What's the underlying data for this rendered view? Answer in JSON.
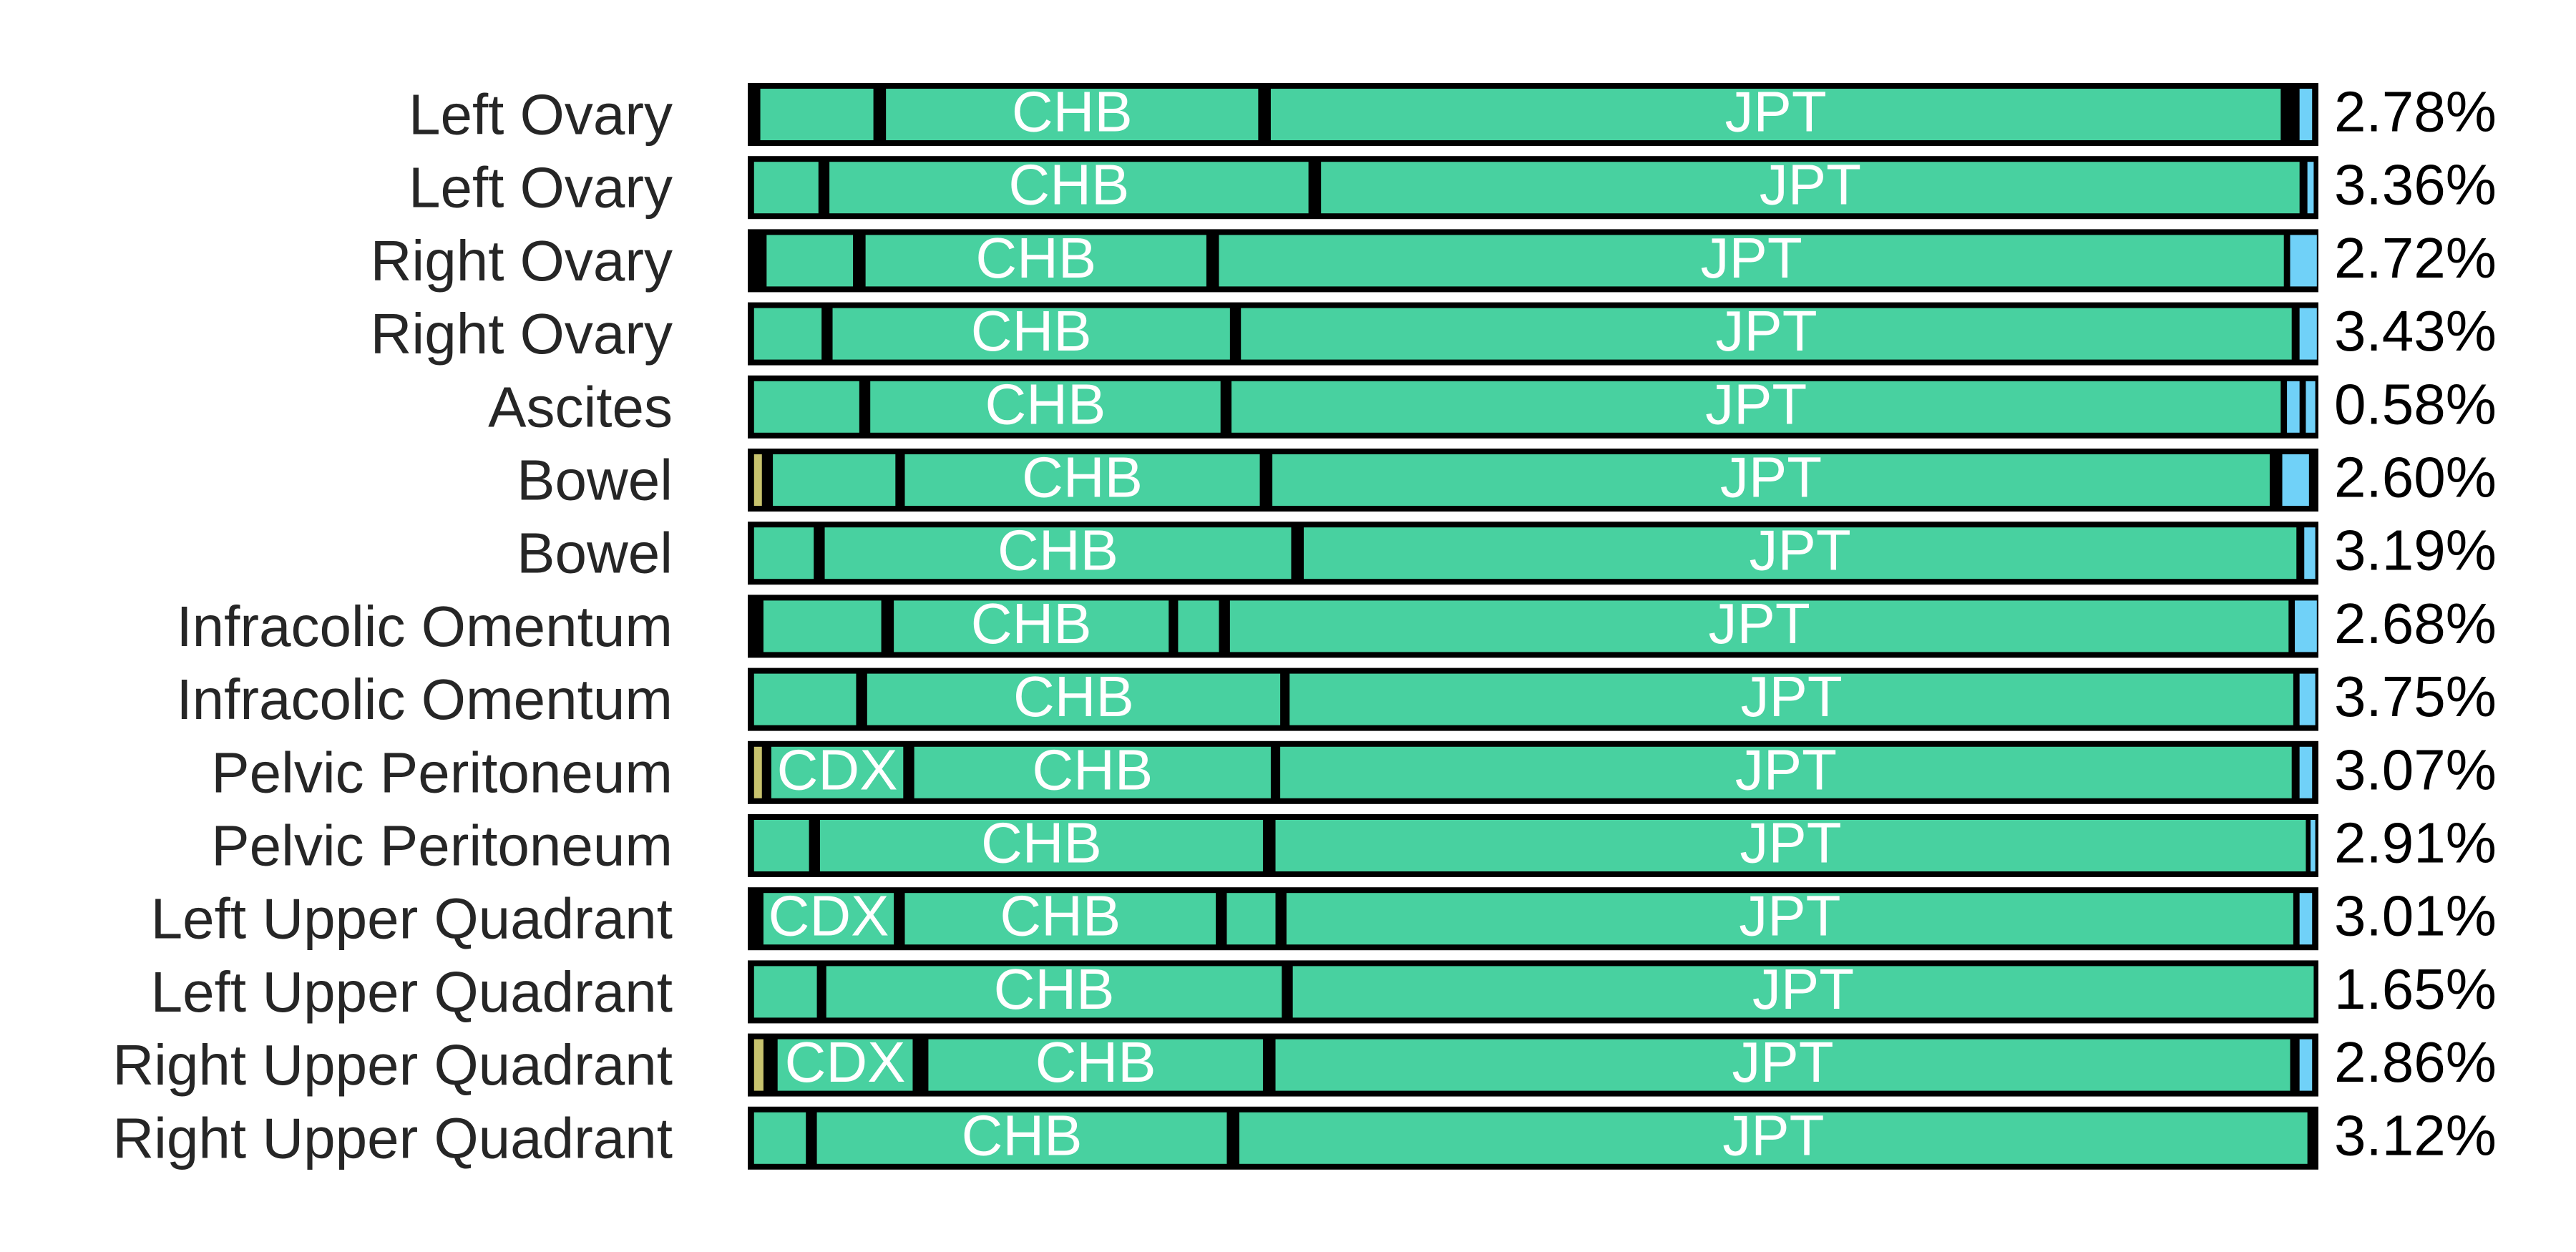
{
  "chart_data": {
    "type": "bar",
    "orientation": "horizontal",
    "stacked": true,
    "normalized": true,
    "xlim": [
      0,
      100
    ],
    "colors": {
      "gap": "#000000",
      "green": "#48d1a0",
      "yellow": "#c8c36e",
      "blue": "#70d1f8"
    },
    "rows": [
      {
        "label": "Left Ovary",
        "value": "2.78%",
        "segments": [
          {
            "start": 0.8,
            "end": 8.0,
            "color": "green",
            "label": ""
          },
          {
            "start": 8.8,
            "end": 32.5,
            "color": "green",
            "label": "CHB"
          },
          {
            "start": 33.3,
            "end": 97.6,
            "color": "green",
            "label": "JPT"
          },
          {
            "start": 98.8,
            "end": 99.6,
            "color": "blue",
            "label": ""
          }
        ]
      },
      {
        "label": "Left Ovary",
        "value": "3.36%",
        "segments": [
          {
            "start": 0.4,
            "end": 4.5,
            "color": "green",
            "label": ""
          },
          {
            "start": 5.2,
            "end": 35.7,
            "color": "green",
            "label": "CHB"
          },
          {
            "start": 36.5,
            "end": 98.8,
            "color": "green",
            "label": "JPT"
          },
          {
            "start": 99.3,
            "end": 99.7,
            "color": "blue",
            "label": ""
          }
        ]
      },
      {
        "label": "Right Ovary",
        "value": "2.72%",
        "segments": [
          {
            "start": 1.2,
            "end": 6.7,
            "color": "green",
            "label": ""
          },
          {
            "start": 7.5,
            "end": 29.2,
            "color": "green",
            "label": "CHB"
          },
          {
            "start": 30.0,
            "end": 97.8,
            "color": "green",
            "label": "JPT"
          },
          {
            "start": 98.2,
            "end": 99.9,
            "color": "blue",
            "label": ""
          }
        ]
      },
      {
        "label": "Right Ovary",
        "value": "3.43%",
        "segments": [
          {
            "start": 0.4,
            "end": 4.7,
            "color": "green",
            "label": ""
          },
          {
            "start": 5.4,
            "end": 30.7,
            "color": "green",
            "label": "CHB"
          },
          {
            "start": 31.4,
            "end": 98.3,
            "color": "green",
            "label": "JPT"
          },
          {
            "start": 98.8,
            "end": 99.9,
            "color": "blue",
            "label": ""
          }
        ]
      },
      {
        "label": "Ascites",
        "value": "0.58%",
        "segments": [
          {
            "start": 0.4,
            "end": 7.1,
            "color": "green",
            "label": ""
          },
          {
            "start": 7.8,
            "end": 30.1,
            "color": "green",
            "label": "CHB"
          },
          {
            "start": 30.8,
            "end": 97.6,
            "color": "green",
            "label": "JPT"
          },
          {
            "start": 98.0,
            "end": 98.8,
            "color": "blue",
            "label": ""
          },
          {
            "start": 99.2,
            "end": 99.8,
            "color": "blue",
            "label": ""
          }
        ]
      },
      {
        "label": "Bowel",
        "value": "2.60%",
        "segments": [
          {
            "start": 0.4,
            "end": 0.9,
            "color": "yellow",
            "label": ""
          },
          {
            "start": 1.6,
            "end": 9.4,
            "color": "green",
            "label": ""
          },
          {
            "start": 10.0,
            "end": 32.6,
            "color": "green",
            "label": "CHB"
          },
          {
            "start": 33.4,
            "end": 96.9,
            "color": "green",
            "label": "JPT"
          },
          {
            "start": 97.7,
            "end": 99.4,
            "color": "blue",
            "label": ""
          }
        ]
      },
      {
        "label": "Bowel",
        "value": "3.19%",
        "segments": [
          {
            "start": 0.4,
            "end": 4.2,
            "color": "green",
            "label": ""
          },
          {
            "start": 4.9,
            "end": 34.6,
            "color": "green",
            "label": "CHB"
          },
          {
            "start": 35.4,
            "end": 98.6,
            "color": "green",
            "label": "JPT"
          },
          {
            "start": 99.1,
            "end": 99.8,
            "color": "blue",
            "label": ""
          }
        ]
      },
      {
        "label": "Infracolic Omentum",
        "value": "2.68%",
        "segments": [
          {
            "start": 1.0,
            "end": 8.5,
            "color": "green",
            "label": ""
          },
          {
            "start": 9.3,
            "end": 26.8,
            "color": "green",
            "label": "CHB"
          },
          {
            "start": 27.4,
            "end": 30.0,
            "color": "green",
            "label": ""
          },
          {
            "start": 30.7,
            "end": 98.1,
            "color": "green",
            "label": "JPT"
          },
          {
            "start": 98.5,
            "end": 99.9,
            "color": "blue",
            "label": ""
          }
        ]
      },
      {
        "label": "Infracolic Omentum",
        "value": "3.75%",
        "segments": [
          {
            "start": 0.4,
            "end": 6.9,
            "color": "green",
            "label": ""
          },
          {
            "start": 7.6,
            "end": 33.9,
            "color": "green",
            "label": "CHB"
          },
          {
            "start": 34.5,
            "end": 98.4,
            "color": "green",
            "label": "JPT"
          },
          {
            "start": 98.8,
            "end": 99.8,
            "color": "blue",
            "label": ""
          }
        ]
      },
      {
        "label": "Pelvic Peritoneum",
        "value": "3.07%",
        "segments": [
          {
            "start": 0.4,
            "end": 0.9,
            "color": "yellow",
            "label": ""
          },
          {
            "start": 1.5,
            "end": 9.9,
            "color": "green",
            "label": "CDX"
          },
          {
            "start": 10.6,
            "end": 33.3,
            "color": "green",
            "label": "CHB"
          },
          {
            "start": 33.9,
            "end": 98.3,
            "color": "green",
            "label": "JPT"
          },
          {
            "start": 98.8,
            "end": 99.6,
            "color": "blue",
            "label": ""
          }
        ]
      },
      {
        "label": "Pelvic Peritoneum",
        "value": "2.91%",
        "segments": [
          {
            "start": 0.4,
            "end": 3.9,
            "color": "green",
            "label": ""
          },
          {
            "start": 4.6,
            "end": 32.8,
            "color": "green",
            "label": "CHB"
          },
          {
            "start": 33.6,
            "end": 99.2,
            "color": "green",
            "label": "JPT"
          },
          {
            "start": 99.5,
            "end": 99.8,
            "color": "blue",
            "label": ""
          }
        ]
      },
      {
        "label": "Left Upper Quadrant",
        "value": "3.01%",
        "segments": [
          {
            "start": 1.0,
            "end": 9.3,
            "color": "green",
            "label": "CDX"
          },
          {
            "start": 10.0,
            "end": 29.8,
            "color": "green",
            "label": "CHB"
          },
          {
            "start": 30.5,
            "end": 33.6,
            "color": "green",
            "label": ""
          },
          {
            "start": 34.3,
            "end": 98.4,
            "color": "green",
            "label": "JPT"
          },
          {
            "start": 98.8,
            "end": 99.6,
            "color": "blue",
            "label": ""
          }
        ]
      },
      {
        "label": "Left Upper Quadrant",
        "value": "1.65%",
        "segments": [
          {
            "start": 0.4,
            "end": 4.4,
            "color": "green",
            "label": ""
          },
          {
            "start": 5.0,
            "end": 34.0,
            "color": "green",
            "label": "CHB"
          },
          {
            "start": 34.7,
            "end": 99.7,
            "color": "green",
            "label": "JPT"
          }
        ]
      },
      {
        "label": "Right Upper Quadrant",
        "value": "2.86%",
        "segments": [
          {
            "start": 0.4,
            "end": 1.0,
            "color": "yellow",
            "label": ""
          },
          {
            "start": 1.9,
            "end": 10.5,
            "color": "green",
            "label": "CDX"
          },
          {
            "start": 11.5,
            "end": 32.8,
            "color": "green",
            "label": "CHB"
          },
          {
            "start": 33.6,
            "end": 98.2,
            "color": "green",
            "label": "JPT"
          },
          {
            "start": 98.8,
            "end": 99.6,
            "color": "blue",
            "label": ""
          }
        ]
      },
      {
        "label": "Right Upper Quadrant",
        "value": "3.12%",
        "segments": [
          {
            "start": 0.4,
            "end": 3.7,
            "color": "green",
            "label": ""
          },
          {
            "start": 4.4,
            "end": 30.5,
            "color": "green",
            "label": "CHB"
          },
          {
            "start": 31.3,
            "end": 99.3,
            "color": "green",
            "label": "JPT"
          }
        ]
      }
    ]
  }
}
